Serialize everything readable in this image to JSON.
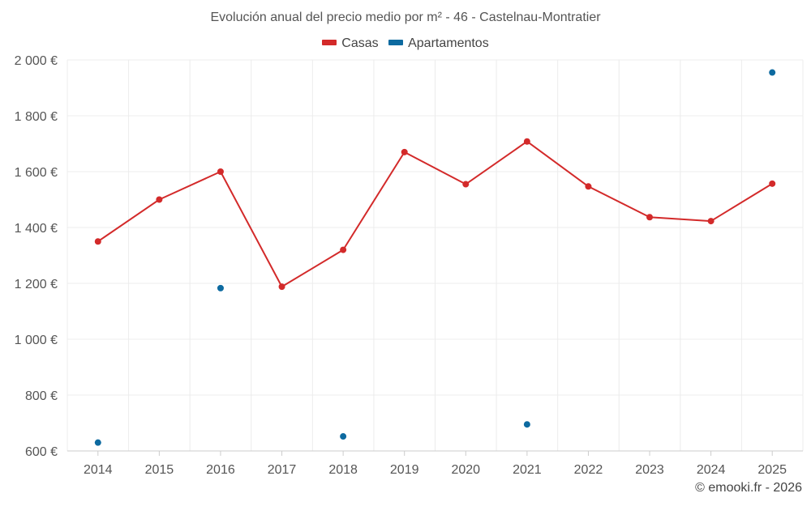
{
  "chart_data": {
    "type": "line",
    "title": "Evolución anual del precio medio por m² - 46 - Castelnau-Montratier",
    "categories": [
      "2014",
      "2015",
      "2016",
      "2017",
      "2018",
      "2019",
      "2020",
      "2021",
      "2022",
      "2023",
      "2024",
      "2025"
    ],
    "y_tick_labels": [
      "600 €",
      "800 €",
      "1 000 €",
      "1 200 €",
      "1 400 €",
      "1 600 €",
      "1 800 €",
      "2 000 €"
    ],
    "y_ticks": [
      600,
      800,
      1000,
      1200,
      1400,
      1600,
      1800,
      2000
    ],
    "ylim": [
      600,
      2000
    ],
    "grid": true,
    "legend_position": "top-center",
    "series": [
      {
        "name": "Casas",
        "color": "#d32a2a",
        "mode": "line+markers",
        "values": [
          1350,
          1500,
          1600,
          1188,
          1320,
          1670,
          1555,
          1708,
          1547,
          1437,
          1423,
          1557
        ]
      },
      {
        "name": "Apartamentos",
        "color": "#0d6aa0",
        "mode": "markers",
        "values": [
          630,
          null,
          1183,
          null,
          652,
          null,
          null,
          695,
          null,
          null,
          null,
          1955
        ]
      }
    ]
  },
  "credit": "© emooki.fr - 2026"
}
